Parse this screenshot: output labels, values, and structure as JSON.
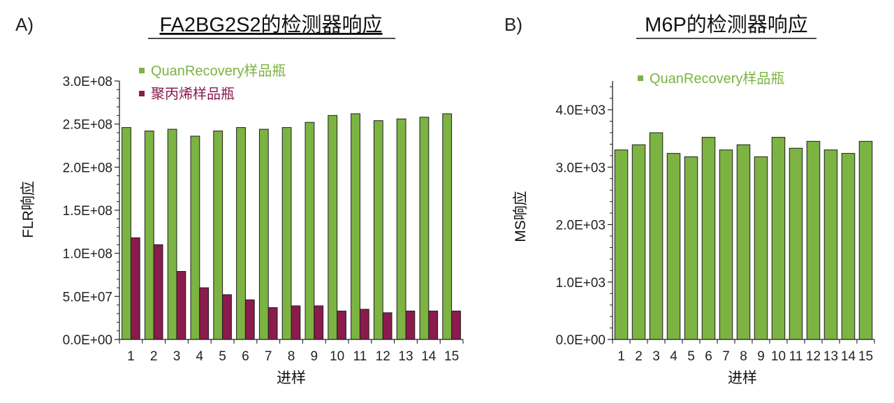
{
  "chart_data": [
    {
      "panel": "A)",
      "type": "bar",
      "title": "FA2BG2S2的检测器响应",
      "xlabel": "进样",
      "ylabel": "FLR响应",
      "categories": [
        "1",
        "2",
        "3",
        "4",
        "5",
        "6",
        "7",
        "8",
        "9",
        "10",
        "11",
        "12",
        "13",
        "14",
        "15"
      ],
      "ylim": [
        0,
        300000000
      ],
      "yticks": [
        0,
        50000000,
        100000000,
        150000000,
        200000000,
        250000000,
        300000000
      ],
      "ytick_labels": [
        "0.0E+00",
        "5.0E+07",
        "1.0E+08",
        "1.5E+08",
        "2.0E+08",
        "2.5E+08",
        "3.0E+08"
      ],
      "legend_position": "top-left",
      "series": [
        {
          "name": "QuanRecovery样品瓶",
          "color": "#7cb342",
          "values": [
            246000000,
            242000000,
            244000000,
            236000000,
            242000000,
            246000000,
            244000000,
            246000000,
            252000000,
            260000000,
            262000000,
            254000000,
            256000000,
            258000000,
            262000000
          ]
        },
        {
          "name": "聚丙烯样品瓶",
          "color": "#8b1a4d",
          "values": [
            118000000,
            110000000,
            79000000,
            60000000,
            52000000,
            46000000,
            37000000,
            39000000,
            39000000,
            33000000,
            35000000,
            31000000,
            33000000,
            33000000,
            33000000
          ]
        }
      ]
    },
    {
      "panel": "B)",
      "type": "bar",
      "title": "M6P的检测器响应",
      "xlabel": "进样",
      "ylabel": "MS响应",
      "categories": [
        "1",
        "2",
        "3",
        "4",
        "5",
        "6",
        "7",
        "8",
        "9",
        "10",
        "11",
        "12",
        "13",
        "14",
        "15"
      ],
      "ylim": [
        0,
        4500
      ],
      "yticks": [
        0,
        1000,
        2000,
        3000,
        4000
      ],
      "ytick_labels": [
        "0.0E+00",
        "1.0E+03",
        "2.0E+03",
        "3.0E+03",
        "4.0E+03"
      ],
      "legend_position": "top-left",
      "series": [
        {
          "name": "QuanRecovery样品瓶",
          "color": "#7cb342",
          "values": [
            3300,
            3390,
            3600,
            3240,
            3180,
            3520,
            3300,
            3390,
            3180,
            3520,
            3330,
            3450,
            3300,
            3240,
            3450
          ]
        }
      ]
    }
  ]
}
